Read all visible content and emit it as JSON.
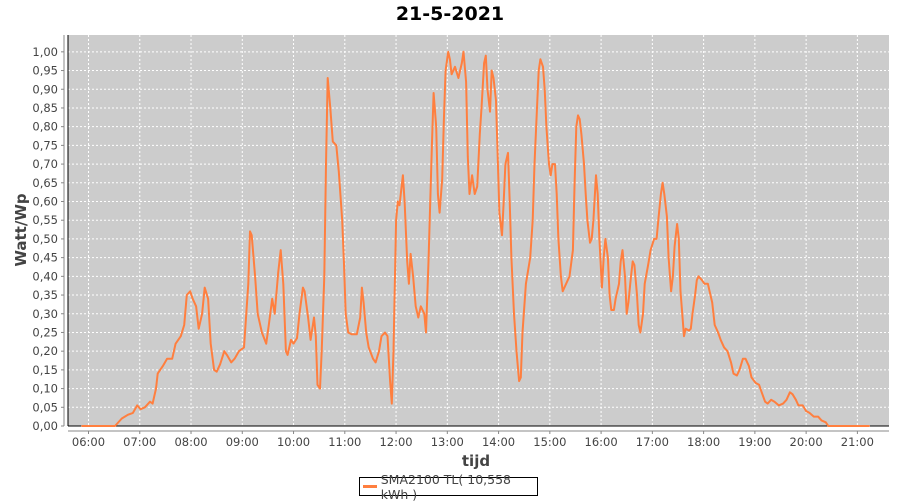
{
  "chart_data": {
    "type": "line",
    "title": "21-5-2021",
    "xlabel": "tijd",
    "ylabel": "Watt/Wp",
    "xlim": [
      "05:36",
      "21:37"
    ],
    "ylim": [
      0,
      1.045
    ],
    "x_ticks": [
      "06:00",
      "07:00",
      "08:00",
      "09:00",
      "10:00",
      "11:00",
      "12:00",
      "13:00",
      "14:00",
      "15:00",
      "16:00",
      "17:00",
      "18:00",
      "19:00",
      "20:00",
      "21:00"
    ],
    "y_ticks": [
      "0,00",
      "0,05",
      "0,10",
      "0,15",
      "0,20",
      "0,25",
      "0,30",
      "0,35",
      "0,40",
      "0,45",
      "0,50",
      "0,55",
      "0,60",
      "0,65",
      "0,70",
      "0,75",
      "0,80",
      "0,85",
      "0,90",
      "0,95",
      "1,00"
    ],
    "grid": true,
    "background": "#cccccc",
    "legend_position": "bottom",
    "series": [
      {
        "name": "SMA2100 TL( 10,558 kWh )",
        "color": "#ff7f3f",
        "points": [
          [
            "05:52",
            0
          ],
          [
            "06:31",
            0
          ],
          [
            "06:39",
            0.02
          ],
          [
            "06:46",
            0.03
          ],
          [
            "06:52",
            0.035
          ],
          [
            "06:57",
            0.055
          ],
          [
            "07:01",
            0.045
          ],
          [
            "07:06",
            0.05
          ],
          [
            "07:12",
            0.065
          ],
          [
            "07:15",
            0.06
          ],
          [
            "07:19",
            0.1
          ],
          [
            "07:21",
            0.14
          ],
          [
            "07:27",
            0.16
          ],
          [
            "07:32",
            0.18
          ],
          [
            "07:38",
            0.18
          ],
          [
            "07:42",
            0.22
          ],
          [
            "07:48",
            0.24
          ],
          [
            "07:52",
            0.27
          ],
          [
            "07:55",
            0.35
          ],
          [
            "07:59",
            0.36
          ],
          [
            "08:02",
            0.34
          ],
          [
            "08:06",
            0.32
          ],
          [
            "08:09",
            0.26
          ],
          [
            "08:13",
            0.3
          ],
          [
            "08:16",
            0.37
          ],
          [
            "08:20",
            0.34
          ],
          [
            "08:23",
            0.22
          ],
          [
            "08:27",
            0.15
          ],
          [
            "08:30",
            0.145
          ],
          [
            "08:34",
            0.165
          ],
          [
            "08:39",
            0.2
          ],
          [
            "08:42",
            0.19
          ],
          [
            "08:47",
            0.17
          ],
          [
            "08:51",
            0.18
          ],
          [
            "08:56",
            0.2
          ],
          [
            "09:02",
            0.21
          ],
          [
            "09:07",
            0.38
          ],
          [
            "09:09",
            0.52
          ],
          [
            "09:11",
            0.51
          ],
          [
            "09:15",
            0.4
          ],
          [
            "09:18",
            0.3
          ],
          [
            "09:23",
            0.25
          ],
          [
            "09:28",
            0.22
          ],
          [
            "09:31",
            0.27
          ],
          [
            "09:35",
            0.34
          ],
          [
            "09:38",
            0.3
          ],
          [
            "09:42",
            0.41
          ],
          [
            "09:45",
            0.47
          ],
          [
            "09:48",
            0.38
          ],
          [
            "09:51",
            0.2
          ],
          [
            "09:53",
            0.19
          ],
          [
            "09:57",
            0.23
          ],
          [
            "10:00",
            0.22
          ],
          [
            "10:04",
            0.235
          ],
          [
            "10:07",
            0.3
          ],
          [
            "10:11",
            0.37
          ],
          [
            "10:13",
            0.36
          ],
          [
            "10:17",
            0.29
          ],
          [
            "10:20",
            0.23
          ],
          [
            "10:24",
            0.29
          ],
          [
            "10:26",
            0.24
          ],
          [
            "10:28",
            0.11
          ],
          [
            "10:31",
            0.1
          ],
          [
            "10:33",
            0.2
          ],
          [
            "10:36",
            0.4
          ],
          [
            "10:38",
            0.7
          ],
          [
            "10:40",
            0.93
          ],
          [
            "10:43",
            0.85
          ],
          [
            "10:46",
            0.76
          ],
          [
            "10:50",
            0.75
          ],
          [
            "10:53",
            0.68
          ],
          [
            "10:57",
            0.55
          ],
          [
            "10:59",
            0.44
          ],
          [
            "11:01",
            0.3
          ],
          [
            "11:04",
            0.25
          ],
          [
            "11:08",
            0.245
          ],
          [
            "11:14",
            0.245
          ],
          [
            "11:18",
            0.29
          ],
          [
            "11:20",
            0.37
          ],
          [
            "11:22",
            0.33
          ],
          [
            "11:25",
            0.25
          ],
          [
            "11:28",
            0.21
          ],
          [
            "11:33",
            0.18
          ],
          [
            "11:36",
            0.17
          ],
          [
            "11:40",
            0.2
          ],
          [
            "11:43",
            0.24
          ],
          [
            "11:47",
            0.25
          ],
          [
            "11:50",
            0.24
          ],
          [
            "11:53",
            0.12
          ],
          [
            "11:55",
            0.06
          ],
          [
            "11:57",
            0.2
          ],
          [
            "12:00",
            0.55
          ],
          [
            "12:02",
            0.6
          ],
          [
            "12:04",
            0.59
          ],
          [
            "12:08",
            0.67
          ],
          [
            "12:10",
            0.6
          ],
          [
            "12:13",
            0.44
          ],
          [
            "12:15",
            0.38
          ],
          [
            "12:17",
            0.46
          ],
          [
            "12:20",
            0.4
          ],
          [
            "12:23",
            0.32
          ],
          [
            "12:26",
            0.29
          ],
          [
            "12:29",
            0.32
          ],
          [
            "12:33",
            0.3
          ],
          [
            "12:35",
            0.25
          ],
          [
            "12:38",
            0.44
          ],
          [
            "12:42",
            0.75
          ],
          [
            "12:44",
            0.89
          ],
          [
            "12:47",
            0.8
          ],
          [
            "12:49",
            0.62
          ],
          [
            "12:51",
            0.57
          ],
          [
            "12:54",
            0.66
          ],
          [
            "12:56",
            0.82
          ],
          [
            "12:58",
            0.95
          ],
          [
            "13:01",
            1.0
          ],
          [
            "13:03",
            0.98
          ],
          [
            "13:05",
            0.94
          ],
          [
            "13:09",
            0.96
          ],
          [
            "13:13",
            0.93
          ],
          [
            "13:17",
            0.97
          ],
          [
            "13:19",
            1.0
          ],
          [
            "13:22",
            0.92
          ],
          [
            "13:24",
            0.72
          ],
          [
            "13:26",
            0.62
          ],
          [
            "13:29",
            0.67
          ],
          [
            "13:32",
            0.62
          ],
          [
            "13:35",
            0.64
          ],
          [
            "13:38",
            0.78
          ],
          [
            "13:40",
            0.85
          ],
          [
            "13:43",
            0.97
          ],
          [
            "13:45",
            0.99
          ],
          [
            "13:47",
            0.9
          ],
          [
            "13:50",
            0.84
          ],
          [
            "13:52",
            0.95
          ],
          [
            "13:54",
            0.93
          ],
          [
            "13:57",
            0.87
          ],
          [
            "13:59",
            0.72
          ],
          [
            "14:01",
            0.57
          ],
          [
            "14:04",
            0.51
          ],
          [
            "14:06",
            0.6
          ],
          [
            "14:08",
            0.7
          ],
          [
            "14:11",
            0.73
          ],
          [
            "14:13",
            0.6
          ],
          [
            "14:15",
            0.45
          ],
          [
            "14:18",
            0.3
          ],
          [
            "14:21",
            0.2
          ],
          [
            "14:24",
            0.12
          ],
          [
            "14:26",
            0.13
          ],
          [
            "14:28",
            0.25
          ],
          [
            "14:32",
            0.38
          ],
          [
            "14:37",
            0.45
          ],
          [
            "14:40",
            0.55
          ],
          [
            "14:42",
            0.7
          ],
          [
            "14:45",
            0.85
          ],
          [
            "14:47",
            0.95
          ],
          [
            "14:49",
            0.98
          ],
          [
            "14:52",
            0.96
          ],
          [
            "14:54",
            0.9
          ],
          [
            "14:56",
            0.8
          ],
          [
            "14:59",
            0.7
          ],
          [
            "15:01",
            0.67
          ],
          [
            "15:03",
            0.7
          ],
          [
            "15:06",
            0.7
          ],
          [
            "15:08",
            0.62
          ],
          [
            "15:10",
            0.5
          ],
          [
            "15:13",
            0.4
          ],
          [
            "15:15",
            0.36
          ],
          [
            "15:17",
            0.37
          ],
          [
            "15:21",
            0.39
          ],
          [
            "15:23",
            0.4
          ],
          [
            "15:27",
            0.47
          ],
          [
            "15:29",
            0.65
          ],
          [
            "15:31",
            0.8
          ],
          [
            "15:33",
            0.83
          ],
          [
            "15:35",
            0.82
          ],
          [
            "15:37",
            0.78
          ],
          [
            "15:40",
            0.7
          ],
          [
            "15:42",
            0.62
          ],
          [
            "15:44",
            0.55
          ],
          [
            "15:47",
            0.49
          ],
          [
            "15:49",
            0.5
          ],
          [
            "15:51",
            0.55
          ],
          [
            "15:54",
            0.67
          ],
          [
            "15:56",
            0.62
          ],
          [
            "15:58",
            0.5
          ],
          [
            "16:01",
            0.37
          ],
          [
            "16:03",
            0.45
          ],
          [
            "16:05",
            0.5
          ],
          [
            "16:08",
            0.45
          ],
          [
            "16:10",
            0.35
          ],
          [
            "16:12",
            0.31
          ],
          [
            "16:15",
            0.31
          ],
          [
            "16:17",
            0.34
          ],
          [
            "16:21",
            0.38
          ],
          [
            "16:23",
            0.44
          ],
          [
            "16:25",
            0.47
          ],
          [
            "16:28",
            0.4
          ],
          [
            "16:30",
            0.3
          ],
          [
            "16:32",
            0.33
          ],
          [
            "16:35",
            0.4
          ],
          [
            "16:37",
            0.44
          ],
          [
            "16:39",
            0.43
          ],
          [
            "16:42",
            0.35
          ],
          [
            "16:44",
            0.27
          ],
          [
            "16:46",
            0.25
          ],
          [
            "16:49",
            0.3
          ],
          [
            "16:51",
            0.38
          ],
          [
            "16:55",
            0.43
          ],
          [
            "16:58",
            0.47
          ],
          [
            "17:02",
            0.5
          ],
          [
            "17:05",
            0.5
          ],
          [
            "17:07",
            0.55
          ],
          [
            "17:10",
            0.62
          ],
          [
            "17:12",
            0.65
          ],
          [
            "17:14",
            0.62
          ],
          [
            "17:17",
            0.56
          ],
          [
            "17:19",
            0.45
          ],
          [
            "17:22",
            0.36
          ],
          [
            "17:24",
            0.4
          ],
          [
            "17:26",
            0.48
          ],
          [
            "17:29",
            0.54
          ],
          [
            "17:31",
            0.5
          ],
          [
            "17:33",
            0.36
          ],
          [
            "17:37",
            0.24
          ],
          [
            "17:39",
            0.26
          ],
          [
            "17:43",
            0.255
          ],
          [
            "17:45",
            0.26
          ],
          [
            "17:47",
            0.3
          ],
          [
            "17:50",
            0.35
          ],
          [
            "17:52",
            0.39
          ],
          [
            "17:54",
            0.4
          ],
          [
            "17:58",
            0.39
          ],
          [
            "18:01",
            0.38
          ],
          [
            "18:05",
            0.38
          ],
          [
            "18:07",
            0.36
          ],
          [
            "18:10",
            0.33
          ],
          [
            "18:13",
            0.27
          ],
          [
            "18:17",
            0.25
          ],
          [
            "18:20",
            0.23
          ],
          [
            "18:24",
            0.21
          ],
          [
            "18:28",
            0.2
          ],
          [
            "18:32",
            0.17
          ],
          [
            "18:35",
            0.14
          ],
          [
            "18:39",
            0.135
          ],
          [
            "18:42",
            0.15
          ],
          [
            "18:46",
            0.18
          ],
          [
            "18:49",
            0.18
          ],
          [
            "18:53",
            0.16
          ],
          [
            "18:56",
            0.13
          ],
          [
            "19:01",
            0.115
          ],
          [
            "19:05",
            0.11
          ],
          [
            "19:08",
            0.09
          ],
          [
            "19:12",
            0.065
          ],
          [
            "19:15",
            0.06
          ],
          [
            "19:19",
            0.07
          ],
          [
            "19:23",
            0.065
          ],
          [
            "19:28",
            0.055
          ],
          [
            "19:33",
            0.06
          ],
          [
            "19:37",
            0.07
          ],
          [
            "19:41",
            0.09
          ],
          [
            "19:44",
            0.085
          ],
          [
            "19:48",
            0.07
          ],
          [
            "19:51",
            0.055
          ],
          [
            "19:56",
            0.055
          ],
          [
            "20:00",
            0.04
          ],
          [
            "20:04",
            0.035
          ],
          [
            "20:09",
            0.025
          ],
          [
            "20:14",
            0.025
          ],
          [
            "20:18",
            0.015
          ],
          [
            "20:23",
            0.01
          ],
          [
            "20:26",
            0
          ],
          [
            "20:33",
            0
          ],
          [
            "21:14",
            0
          ]
        ]
      }
    ]
  }
}
